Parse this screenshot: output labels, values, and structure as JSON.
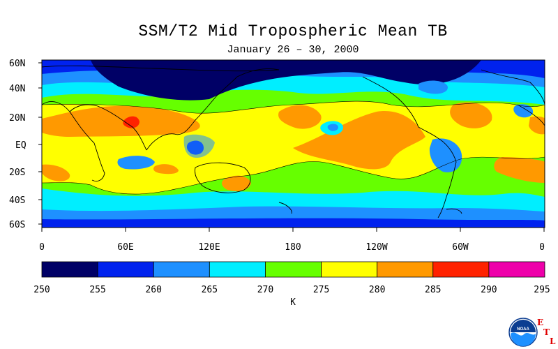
{
  "title": "SSM/T2 Mid Tropospheric Mean TB",
  "subtitle": "January 26 – 30, 2000",
  "map": {
    "lat_labels": [
      "60N",
      "40N",
      "20N",
      "EQ",
      "20S",
      "40S",
      "60S"
    ],
    "lon_labels": [
      "0",
      "60E",
      "120E",
      "180",
      "120W",
      "60W",
      "0"
    ]
  },
  "colorbar": {
    "levels": [
      "250",
      "255",
      "260",
      "265",
      "270",
      "275",
      "280",
      "285",
      "290",
      "295"
    ],
    "colors": [
      "#000066",
      "#0022ee",
      "#1e90ff",
      "#00eeff",
      "#66ff00",
      "#ffff00",
      "#ff9900",
      "#ff2200",
      "#ee00aa"
    ],
    "unit": "K"
  },
  "logo": {
    "text": "NOAA",
    "letters": [
      "E",
      "T",
      "L"
    ]
  },
  "colors": {
    "c250": "#000066",
    "c255": "#0022ee",
    "c260": "#1e90ff",
    "c265": "#00eeff",
    "c270": "#66ff00",
    "c275": "#ffff00",
    "c280": "#ff9900",
    "c285": "#ff2200"
  }
}
